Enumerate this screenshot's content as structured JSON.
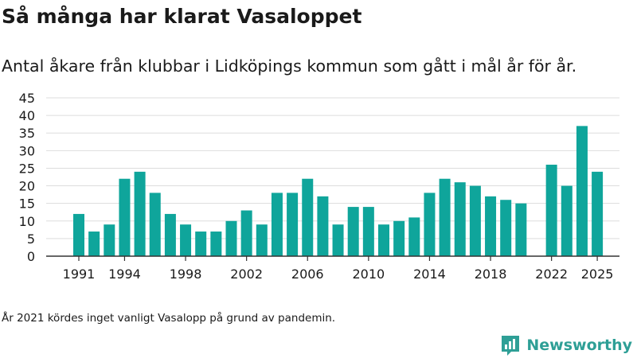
{
  "title": "Så många har klarat Vasaloppet",
  "subtitle": "Antal åkare från klubbar i Lidköpings kommun som gått i mål år för år.",
  "note": "År 2021 kördes inget vanligt Vasalopp på grund av pandemin.",
  "brand": {
    "name": "Newsworthy",
    "logo_icon": "bar-chart-flag-icon",
    "color": "#2e9f96"
  },
  "colors": {
    "bar": "#0fa59b",
    "grid": "#dddddd",
    "axis": "#333333",
    "text": "#1a1a1a"
  },
  "chart_data": {
    "type": "bar",
    "title": "Så många har klarat Vasaloppet",
    "xlabel": "",
    "ylabel": "",
    "x": [
      1991,
      1992,
      1993,
      1994,
      1995,
      1996,
      1997,
      1998,
      1999,
      2000,
      2001,
      2002,
      2003,
      2004,
      2005,
      2006,
      2007,
      2008,
      2009,
      2010,
      2011,
      2012,
      2013,
      2014,
      2015,
      2016,
      2017,
      2018,
      2019,
      2020,
      2021,
      2022,
      2023,
      2024,
      2025
    ],
    "values": [
      12,
      7,
      9,
      22,
      24,
      18,
      12,
      9,
      7,
      7,
      10,
      13,
      9,
      18,
      18,
      22,
      17,
      9,
      14,
      14,
      9,
      10,
      11,
      18,
      22,
      21,
      20,
      17,
      16,
      15,
      null,
      26,
      20,
      37,
      24
    ],
    "xticks": [
      1991,
      1994,
      1998,
      2002,
      2006,
      2010,
      2014,
      2018,
      2022,
      2025
    ],
    "yticks": [
      0,
      5,
      10,
      15,
      20,
      25,
      30,
      35,
      40,
      45
    ],
    "ylim": [
      0,
      45
    ],
    "grid": true,
    "legend": "none"
  }
}
